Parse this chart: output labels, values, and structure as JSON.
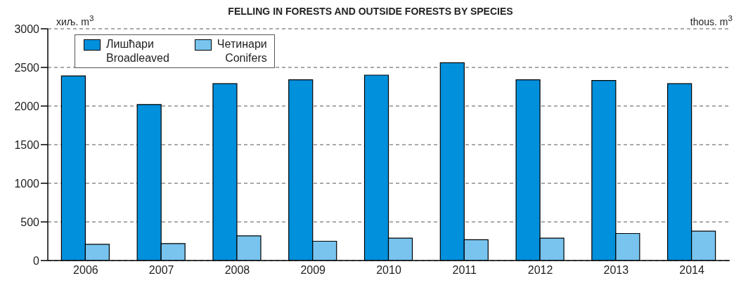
{
  "chart_data": {
    "type": "bar",
    "title": "FELLING IN FORESTS AND OUTSIDE FORESTS BY SPECIES",
    "annotations": [
      "хиљ. m$^{3}$",
      "thous. m$^{3}$"
    ],
    "categories": [
      "2006",
      "2007",
      "2008",
      "2009",
      "2010",
      "2011",
      "2012",
      "2013",
      "2014"
    ],
    "series": [
      {
        "name": "Лишћари\nBroadleaved",
        "color": "#0090dc",
        "values": [
          2390,
          2020,
          2290,
          2340,
          2400,
          2560,
          2340,
          2330,
          2290
        ]
      },
      {
        "name": "Четинари\nConifers",
        "color": "#78c4ef",
        "values": [
          210,
          220,
          320,
          250,
          290,
          270,
          290,
          350,
          380
        ]
      }
    ],
    "ylim": [
      0,
      3000
    ],
    "yticks": [
      0,
      500,
      1000,
      1500,
      2000,
      2500,
      3000
    ],
    "grid": "y",
    "legend": "top left"
  }
}
